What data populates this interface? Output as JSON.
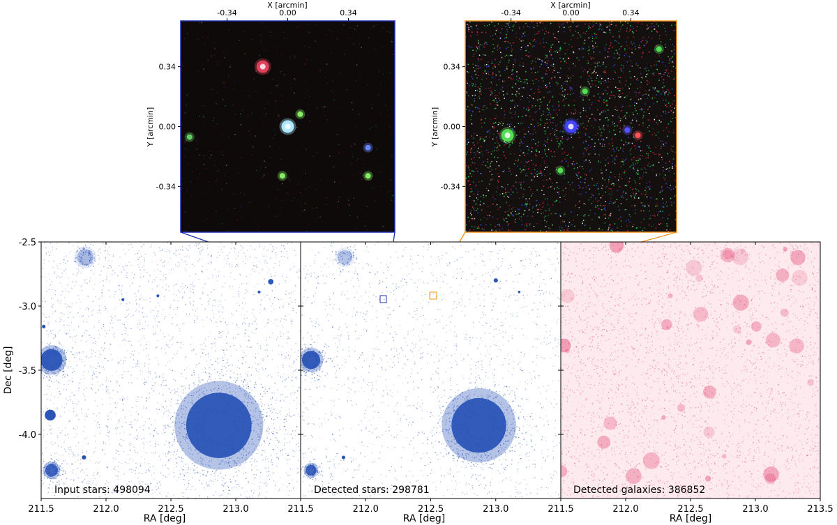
{
  "chart_data": [
    {
      "type": "scatter",
      "panel": "zoom-left",
      "xlabel": "X [arcmin]",
      "ylabel": "Y [arcmin]",
      "xlim": [
        -0.6,
        0.6
      ],
      "ylim": [
        -0.6,
        0.6
      ],
      "xticks": [
        "-0.34",
        "0.00",
        "0.34"
      ],
      "yticks": [
        "0.34",
        "0.00",
        "-0.34"
      ],
      "frame_color": "#1f2fb0",
      "sources": [
        {
          "x": -0.14,
          "y": 0.34,
          "color": "#e0405a"
        },
        {
          "x": 0.0,
          "y": 0.0,
          "color": "#aee8ff"
        },
        {
          "x": 0.07,
          "y": 0.07,
          "color": "#88ee66"
        },
        {
          "x": 0.45,
          "y": -0.12,
          "color": "#6688ff"
        },
        {
          "x": -0.03,
          "y": -0.28,
          "color": "#88ee66"
        },
        {
          "x": 0.45,
          "y": -0.28,
          "color": "#88ee66"
        },
        {
          "x": -0.55,
          "y": -0.06,
          "color": "#66cc66"
        }
      ]
    },
    {
      "type": "scatter",
      "panel": "zoom-right",
      "xlabel": "X [arcmin]",
      "ylabel": "Y [arcmin]",
      "xlim": [
        -0.6,
        0.6
      ],
      "ylim": [
        -0.6,
        0.6
      ],
      "xticks": [
        "-0.34",
        "0.00",
        "0.34"
      ],
      "yticks": [
        "0.34",
        "0.00",
        "-0.34"
      ],
      "frame_color": "#f0901a",
      "sources": [
        {
          "x": 0.0,
          "y": 0.0,
          "color": "#4444ff"
        },
        {
          "x": -0.36,
          "y": -0.05,
          "color": "#55dd55"
        },
        {
          "x": 0.32,
          "y": -0.02,
          "color": "#5555ff"
        },
        {
          "x": 0.38,
          "y": -0.05,
          "color": "#ff5555"
        },
        {
          "x": 0.5,
          "y": 0.44,
          "color": "#55dd55"
        },
        {
          "x": 0.08,
          "y": 0.2,
          "color": "#55dd55"
        },
        {
          "x": -0.06,
          "y": -0.25,
          "color": "#55dd55"
        }
      ]
    },
    {
      "type": "scatter",
      "panel": "input-stars",
      "annotation": "Input stars: 498094",
      "xlabel": "RA [deg]",
      "ylabel": "Dec [deg]",
      "xlim": [
        211.5,
        213.5
      ],
      "ylim": [
        -4.5,
        -2.5
      ],
      "xticks": [
        "211.5",
        "212.0",
        "212.5",
        "213.0",
        "211.5"
      ],
      "yticks": [
        "-2.5",
        "-3.0",
        "-3.5",
        "-4.0"
      ],
      "point_color": "#2c55b8",
      "clusters": [
        {
          "ra": 212.87,
          "dec": -3.93,
          "r": 0.36,
          "peak": 1.0
        },
        {
          "ra": 211.58,
          "dec": -3.42,
          "r": 0.12,
          "peak": 1.0
        },
        {
          "ra": 211.84,
          "dec": -2.62,
          "r": 0.09,
          "peak": 0.35
        },
        {
          "ra": 211.58,
          "dec": -4.28,
          "r": 0.07,
          "peak": 0.9
        },
        {
          "ra": 211.57,
          "dec": -3.85,
          "r": 0.03,
          "peak": 0.4
        },
        {
          "ra": 213.27,
          "dec": -2.81,
          "r": 0.015,
          "peak": 1.0
        },
        {
          "ra": 213.18,
          "dec": -2.89,
          "r": 0.008,
          "peak": 1.0
        },
        {
          "ra": 212.4,
          "dec": -2.92,
          "r": 0.008,
          "peak": 1.0
        },
        {
          "ra": 212.13,
          "dec": -2.95,
          "r": 0.008,
          "peak": 1.0
        },
        {
          "ra": 211.83,
          "dec": -4.18,
          "r": 0.012,
          "peak": 1.0
        },
        {
          "ra": 211.52,
          "dec": -3.16,
          "r": 0.01,
          "peak": 1.0
        }
      ]
    },
    {
      "type": "scatter",
      "panel": "detected-stars",
      "annotation": "Detected stars: 298781",
      "xlabel": "RA [deg]",
      "xlim": [
        211.5,
        213.5
      ],
      "ylim": [
        -4.5,
        -2.5
      ],
      "xticks": [
        "212.0",
        "212.5",
        "213.0",
        "211.5"
      ],
      "point_color": "#2c55b8",
      "clusters": [
        {
          "ra": 212.87,
          "dec": -3.93,
          "r": 0.3,
          "peak": 1.0
        },
        {
          "ra": 211.58,
          "dec": -3.42,
          "r": 0.1,
          "peak": 1.0
        },
        {
          "ra": 211.84,
          "dec": -2.62,
          "r": 0.08,
          "peak": 0.3
        },
        {
          "ra": 211.58,
          "dec": -4.28,
          "r": 0.06,
          "peak": 0.9
        },
        {
          "ra": 213.0,
          "dec": -2.8,
          "r": 0.012,
          "peak": 1.0
        },
        {
          "ra": 213.18,
          "dec": -2.89,
          "r": 0.006,
          "peak": 1.0
        },
        {
          "ra": 211.83,
          "dec": -4.18,
          "r": 0.01,
          "peak": 1.0
        }
      ],
      "zoom_boxes": [
        {
          "ra": 212.1,
          "dec": -2.96,
          "color": "#1f2fb0"
        },
        {
          "ra": 212.52,
          "dec": -2.92,
          "color": "#f0901a"
        }
      ]
    },
    {
      "type": "scatter",
      "panel": "detected-galaxies",
      "annotation": "Detected galaxies: 386852",
      "xlabel": "RA [deg]",
      "xlim": [
        211.5,
        213.5
      ],
      "ylim": [
        -4.5,
        -2.5
      ],
      "xticks": [
        "212.0",
        "212.5",
        "213.0",
        "213.5"
      ],
      "point_color": "#e03060"
    }
  ]
}
